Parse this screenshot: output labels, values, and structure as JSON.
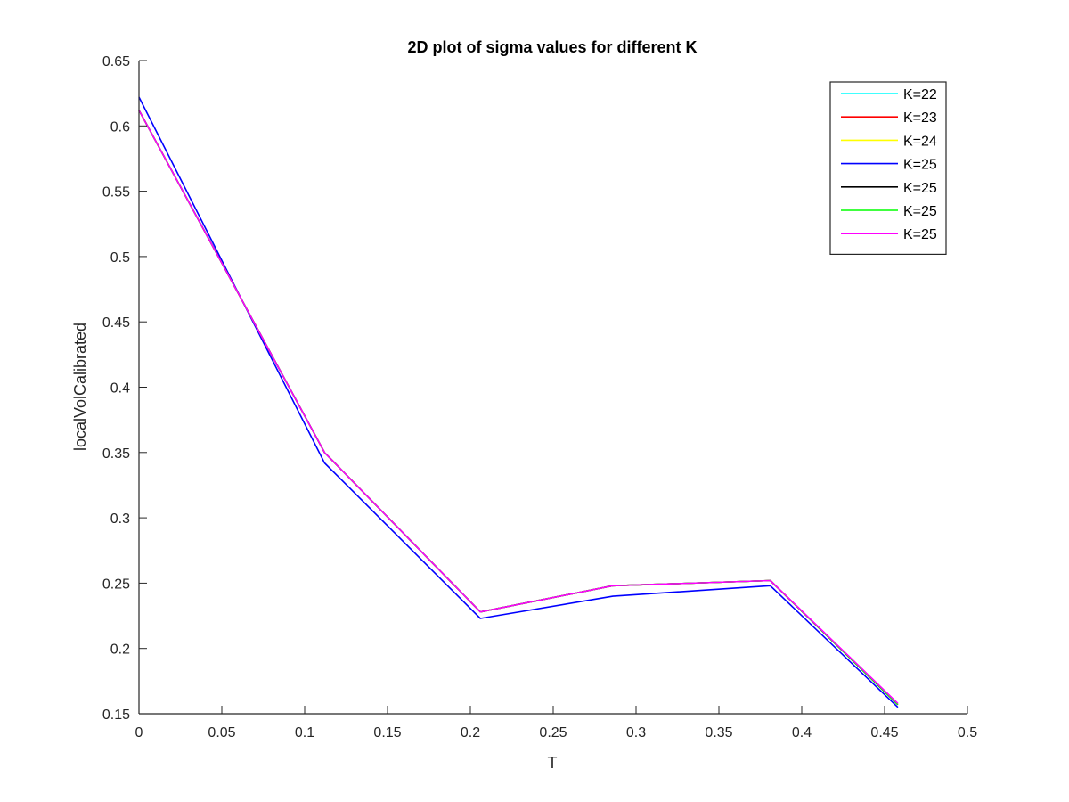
{
  "chart_data": {
    "type": "line",
    "title": "2D plot of sigma values for different K",
    "xlabel": "T",
    "ylabel": "localVolCalibrated",
    "xlim": [
      0,
      0.5
    ],
    "ylim": [
      0.15,
      0.65
    ],
    "xticks": [
      0,
      0.05,
      0.1,
      0.15,
      0.2,
      0.25,
      0.3,
      0.35,
      0.4,
      0.45,
      0.5
    ],
    "xtick_labels": [
      "0",
      "0.05",
      "0.1",
      "0.15",
      "0.2",
      "0.25",
      "0.3",
      "0.35",
      "0.4",
      "0.45",
      "0.5"
    ],
    "yticks": [
      0.15,
      0.2,
      0.25,
      0.3,
      0.35,
      0.4,
      0.45,
      0.5,
      0.55,
      0.6,
      0.65
    ],
    "ytick_labels": [
      "0.15",
      "0.2",
      "0.25",
      "0.3",
      "0.35",
      "0.4",
      "0.45",
      "0.5",
      "0.55",
      "0.6",
      "0.65"
    ],
    "grid": false,
    "legend": "top-right",
    "x": [
      0,
      0.112,
      0.206,
      0.286,
      0.381,
      0.458
    ],
    "series": [
      {
        "name": "K=22",
        "color": "#00ffff",
        "values": [
          0.612,
          0.35,
          0.228,
          0.248,
          0.252,
          0.157
        ]
      },
      {
        "name": "K=23",
        "color": "#ff0000",
        "values": [
          0.612,
          0.35,
          0.228,
          0.248,
          0.252,
          0.157
        ]
      },
      {
        "name": "K=24",
        "color": "#ffff00",
        "values": [
          0.612,
          0.35,
          0.228,
          0.248,
          0.252,
          0.157
        ]
      },
      {
        "name": "K=25",
        "color": "#0000ff",
        "values": [
          0.622,
          0.342,
          0.223,
          0.24,
          0.248,
          0.155
        ]
      },
      {
        "name": "K=25",
        "color": "#000000",
        "values": [
          0.612,
          0.35,
          0.228,
          0.248,
          0.252,
          0.157
        ]
      },
      {
        "name": "K=25",
        "color": "#00ff00",
        "values": [
          0.612,
          0.35,
          0.228,
          0.248,
          0.252,
          0.157
        ]
      },
      {
        "name": "K=25",
        "color": "#ff00ff",
        "values": [
          0.612,
          0.35,
          0.228,
          0.248,
          0.252,
          0.158
        ]
      }
    ]
  }
}
